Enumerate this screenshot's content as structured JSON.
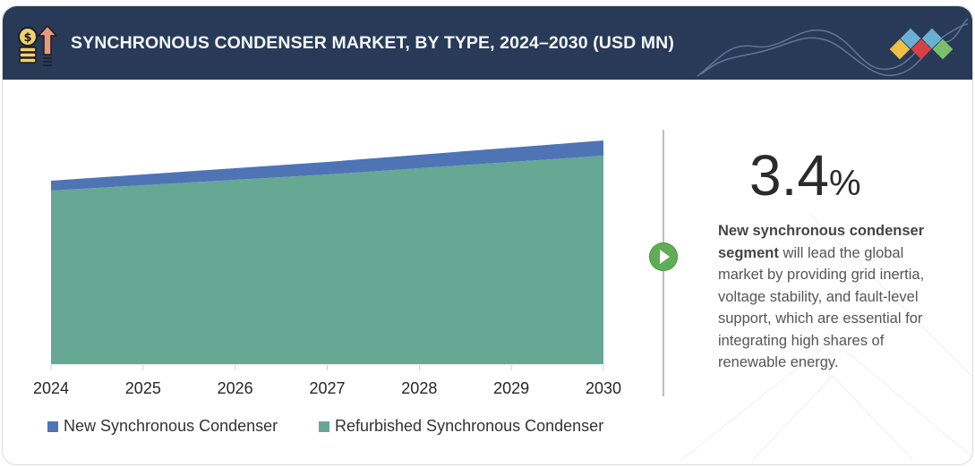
{
  "header": {
    "title": "SYNCHRONOUS CONDENSER MARKET, BY TYPE, 2024–2030 (USD MN)",
    "icon": "coins-growth-arrow-icon",
    "brand_icon": "colored-diamonds-logo-icon",
    "background_color": "#283a57"
  },
  "chart_data": {
    "type": "area",
    "stacked": true,
    "title": "SYNCHRONOUS CONDENSER MARKET, BY TYPE, 2024–2030 (USD MN)",
    "xlabel": "",
    "ylabel": "",
    "x": [
      "2024",
      "2025",
      "2026",
      "2027",
      "2028",
      "2029",
      "2030"
    ],
    "series": [
      {
        "name": "Refurbished Synchronous Condenser",
        "color": "#66a893",
        "values": [
          194,
          200,
          206,
          212,
          219,
          226,
          233
        ]
      },
      {
        "name": "New Synchronous Condenser",
        "color": "#4f74b5",
        "values": [
          11,
          12,
          13,
          14,
          15,
          16,
          17
        ]
      }
    ],
    "units_note": "relative (no y-axis shown)",
    "grid": false,
    "legend_position": "bottom"
  },
  "axis": {
    "ticks": [
      "2024",
      "2025",
      "2026",
      "2027",
      "2028",
      "2029",
      "2030"
    ]
  },
  "legend": [
    {
      "label": "New Synchronous Condenser",
      "color": "#4f74b5"
    },
    {
      "label": "Refurbished Synchronous Condenser",
      "color": "#66a893"
    }
  ],
  "insight": {
    "cagr_value": "3.4",
    "cagr_unit": "%",
    "bold_text": "New synchronous condenser segment",
    "text": " will lead the global market by providing grid inertia, voltage stability, and fault-level support, which are essential for integrating high shares of renewable energy.",
    "play_icon": "play-icon",
    "play_color": "#5fad56"
  }
}
